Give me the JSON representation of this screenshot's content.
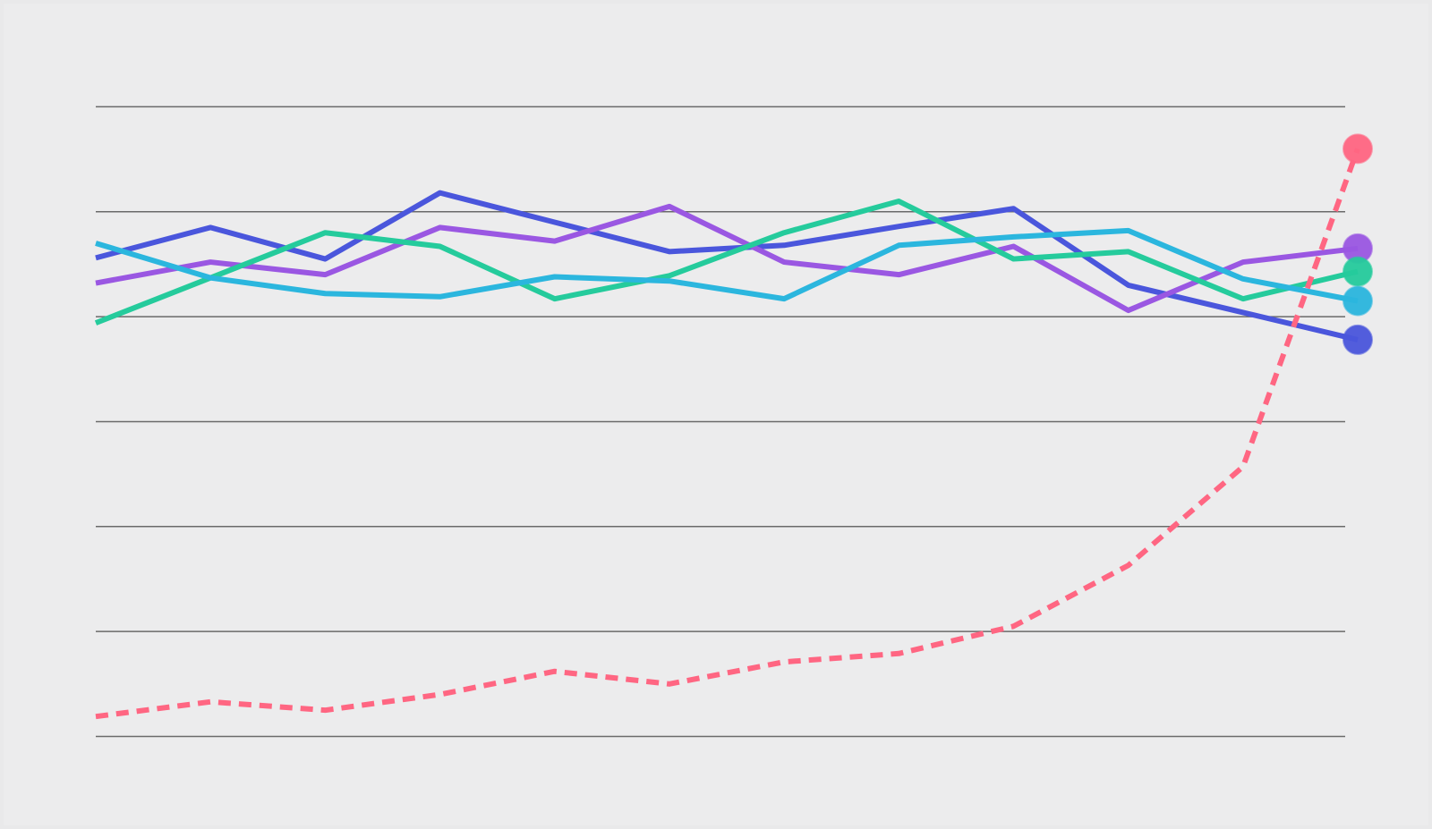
{
  "chart_data": {
    "type": "line",
    "categories": [
      null,
      null,
      null,
      null,
      null,
      null,
      null,
      null,
      null,
      null,
      null,
      null
    ],
    "ylim": [
      0,
      6
    ],
    "yticks": [
      0,
      1,
      2,
      3,
      4,
      5,
      6
    ],
    "grid": true,
    "series": [
      {
        "color": "#4a56dc",
        "values": [
          4.56,
          4.85,
          4.55,
          5.18,
          4.9,
          4.62,
          4.68,
          4.86,
          5.03,
          4.3,
          4.04,
          3.78
        ]
      },
      {
        "color": "#9a57e2",
        "values": [
          4.32,
          4.52,
          4.4,
          4.85,
          4.72,
          5.05,
          4.52,
          4.4,
          4.67,
          4.06,
          4.52,
          4.65
        ]
      },
      {
        "color": "#25cb9c",
        "values": [
          3.94,
          4.37,
          4.8,
          4.67,
          4.17,
          4.39,
          4.8,
          5.1,
          4.55,
          4.62,
          4.17,
          4.43
        ]
      },
      {
        "color": "#2bb6de",
        "values": [
          4.7,
          4.37,
          4.22,
          4.19,
          4.38,
          4.34,
          4.17,
          4.68,
          4.76,
          4.82,
          4.36,
          4.15
        ]
      },
      {
        "color": "#ff6682",
        "dashed": true,
        "values": [
          0.19,
          0.33,
          0.25,
          0.4,
          0.62,
          0.5,
          0.71,
          0.79,
          1.05,
          1.63,
          2.57,
          5.6
        ]
      }
    ]
  }
}
